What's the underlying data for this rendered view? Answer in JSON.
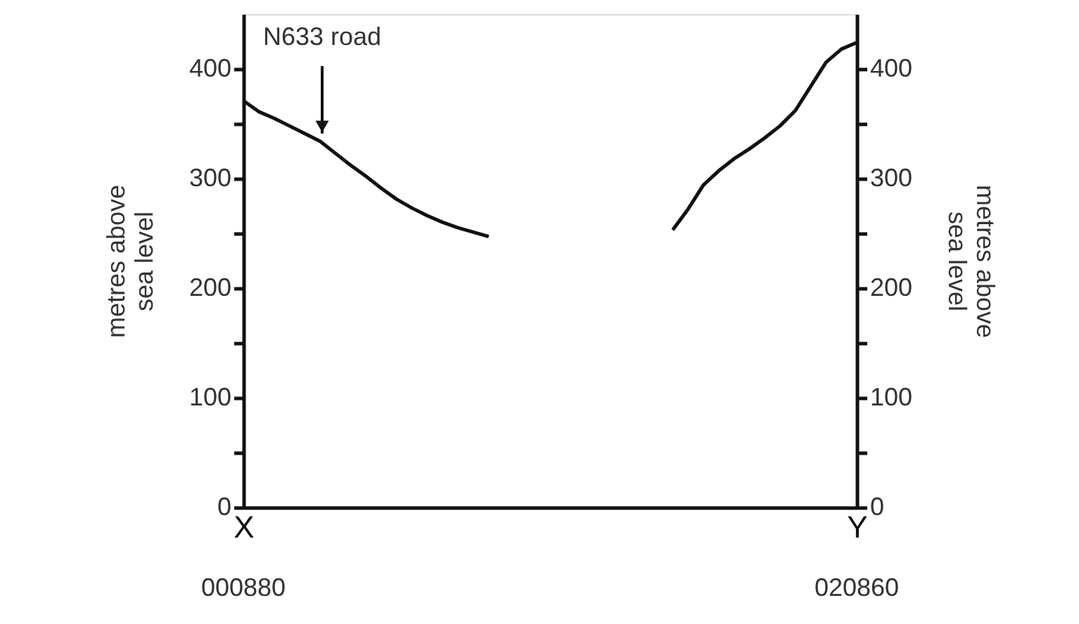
{
  "chart_data": {
    "type": "line",
    "ylabel": "metres above sea level",
    "y2label": "metres above sea level",
    "categories": [
      "X",
      null,
      null,
      null,
      null,
      null,
      null,
      null,
      null,
      null,
      null,
      null,
      null,
      null,
      null,
      null,
      null,
      null,
      null,
      null,
      null,
      null,
      null,
      null,
      null,
      null,
      null,
      null,
      null,
      null,
      null,
      null,
      null,
      null,
      null,
      null,
      null,
      null,
      null,
      null,
      "Y"
    ],
    "series": [
      {
        "color": "#111111",
        "values": [
          371,
          361,
          355,
          348,
          341,
          334,
          323,
          312,
          302,
          291,
          281,
          273,
          266,
          260,
          255,
          251,
          247,
          null,
          null,
          null,
          null,
          null,
          null,
          null,
          null,
          null,
          null,
          null,
          253,
          272,
          294,
          307,
          318,
          327,
          337,
          348,
          362,
          384,
          406,
          418,
          424
        ]
      }
    ],
    "ylim": [
      0,
      450
    ],
    "yticks": [
      0,
      {
        "value": 50,
        "label": null
      },
      100,
      {
        "value": 150,
        "label": null
      },
      200,
      {
        "value": 250,
        "label": null
      },
      300,
      {
        "value": 350,
        "label": null
      },
      400
    ],
    "y2lim": [
      0,
      450
    ],
    "y2ticks": [
      0,
      {
        "value": 50,
        "label": null
      },
      100,
      {
        "value": 150,
        "label": null
      },
      200,
      {
        "value": 250,
        "label": null
      },
      300,
      {
        "value": 350,
        "label": null
      },
      400
    ],
    "annotations": [
      {
        "text": "N633 road",
        "y": 341
      },
      "000880",
      "020860"
    ],
    "grid": false,
    "line_style": "solid"
  }
}
